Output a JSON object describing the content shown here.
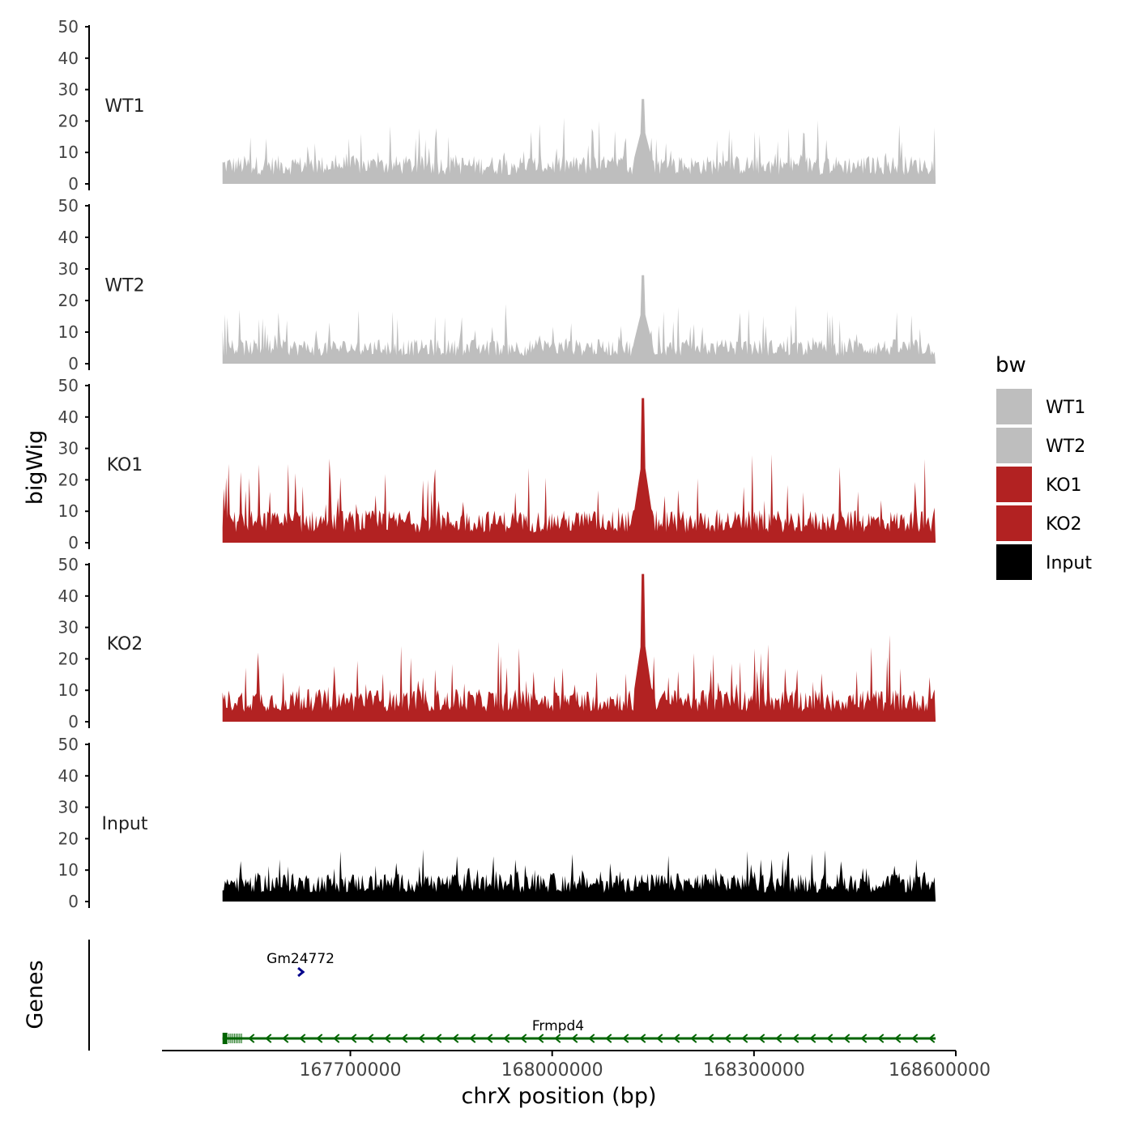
{
  "chart_data": {
    "type": "area",
    "title": "",
    "xlabel": "chrX position (bp)",
    "ylabel": "bigWig",
    "genes_label": "Genes",
    "xlim": [
      167420000,
      168600000
    ],
    "data_range": [
      167510000,
      168570000
    ],
    "x_ticks": [
      167700000,
      168000000,
      168300000,
      168600000
    ],
    "x_tick_labels": [
      "167700000",
      "168000000",
      "168300000",
      "168600000"
    ],
    "ylim": [
      0,
      50
    ],
    "y_ticks": [
      0,
      10,
      20,
      30,
      40,
      50
    ],
    "legend": {
      "title": "bw",
      "position": "right",
      "entries": [
        {
          "label": "WT1",
          "color": "#bebebe"
        },
        {
          "label": "WT2",
          "color": "#bebebe"
        },
        {
          "label": "KO1",
          "color": "#b22222"
        },
        {
          "label": "KO2",
          "color": "#b22222"
        },
        {
          "label": "Input",
          "color": "#000000"
        }
      ]
    },
    "series": [
      {
        "name": "WT1",
        "color": "#bebebe",
        "baseline_level": 7,
        "noise_max": 20,
        "peak_x": 168135000,
        "peak_value": 27
      },
      {
        "name": "WT2",
        "color": "#bebebe",
        "baseline_level": 6,
        "noise_max": 18,
        "peak_x": 168135000,
        "peak_value": 28
      },
      {
        "name": "KO1",
        "color": "#b22222",
        "baseline_level": 8,
        "noise_max": 26,
        "peak_x": 168135000,
        "peak_value": 46
      },
      {
        "name": "KO2",
        "color": "#b22222",
        "baseline_level": 8,
        "noise_max": 26,
        "peak_x": 168135000,
        "peak_value": 47
      },
      {
        "name": "Input",
        "color": "#000000",
        "baseline_level": 7,
        "noise_max": 15,
        "peak_x": null,
        "peak_value": null
      }
    ],
    "genes": [
      {
        "name": "Gm24772",
        "color": "#00008b",
        "start": 167623000,
        "end": 167629000,
        "strand": "+",
        "row": 0
      },
      {
        "name": "Frmpd4",
        "color": "#006400",
        "start": 167510000,
        "end": 168570000,
        "strand": "-",
        "row": 1
      }
    ]
  }
}
